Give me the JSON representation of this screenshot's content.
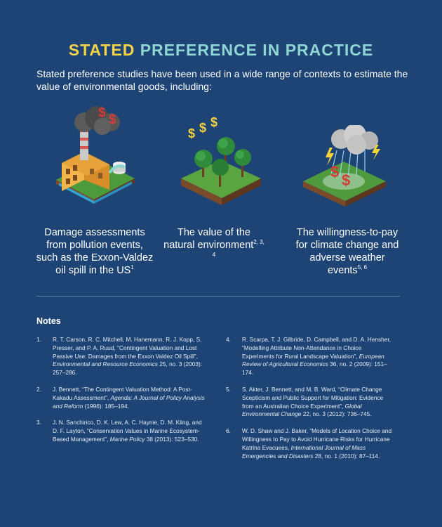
{
  "header": {
    "title_part1": "STATED",
    "title_part2": "PREFERENCE IN PRACTICE",
    "intro": "Stated preference studies have been used in a wide range of contexts to estimate the value of environmental goods, including:"
  },
  "colors": {
    "background": "#1d4474",
    "title_yellow": "#f6d24a",
    "title_teal": "#8ed6d4"
  },
  "icons": {
    "dollar_sign": "$"
  },
  "examples": [
    {
      "icon": "factory-pollution-icon",
      "caption": "Damage assessments from pollution events, such as the Exxon-Valdez oil spill in the US",
      "refs": "1"
    },
    {
      "icon": "forest-icon",
      "caption": "The value of the natural environment",
      "refs": "2, 3, 4"
    },
    {
      "icon": "storm-cloud-icon",
      "caption": "The willingness-to-pay for climate change and adverse weather events",
      "refs": "5, 6"
    }
  ],
  "notes": {
    "heading": "Notes",
    "items": [
      {
        "num": "1.",
        "pre": "R. T. Carson, R. C. Mitchell, M. Hanemann, R. J. Kopp, S. Presser, and P. A. Ruud, “Contingent Valuation and Lost Passive Use: Damages from the Exxon Valdez Oil Spill”, ",
        "journal": "Environmental and Resource Economics",
        "post": " 25, no. 3 (2003): 257–286."
      },
      {
        "num": "2.",
        "pre": "J. Bennett, “The Contingent Valuation Method: A Post-Kakadu Assessment”, ",
        "journal": "Agenda: A Journal of Policy Analysis and Reform",
        "post": " (1996): 185–194."
      },
      {
        "num": "3.",
        "pre": "J. N. Sanchirico, D. K. Lew, A. C. Haynie, D. M. Kling, and D. F. Layton, “Conservation Values in Marine Ecosystem-Based Management”, ",
        "journal": "Marine Policy",
        "post": " 38 (2013): 523–530."
      },
      {
        "num": "4.",
        "pre": "R. Scarpa, T. J. Gilbride, D. Campbell, and D. A. Hensher, “Modelling Attribute Non-Attendance in Choice Experiments for Rural Landscape Valuation”, ",
        "journal": "European Review of Agricultural Economics",
        "post": " 36, no. 2 (2009): 151–174."
      },
      {
        "num": "5.",
        "pre": "S. Akter, J. Bennett, and M. B. Ward, “Climate Change Scepticism and Public Support for Mitigation: Evidence from an Australian Choice Experiment”, ",
        "journal": "Global Environmental Change",
        "post": " 22, no. 3 (2012): 736–745."
      },
      {
        "num": "6.",
        "pre": "W. D. Shaw and J. Baker, “Models of Location Choice and Willingness to Pay to Avoid Hurricane Risks for Hurricane Katrina Evacuees, ",
        "journal": "International Journal of Mass Emergencies and Disasters",
        "post": " 28, no. 1 (2010): 87–114."
      }
    ]
  }
}
